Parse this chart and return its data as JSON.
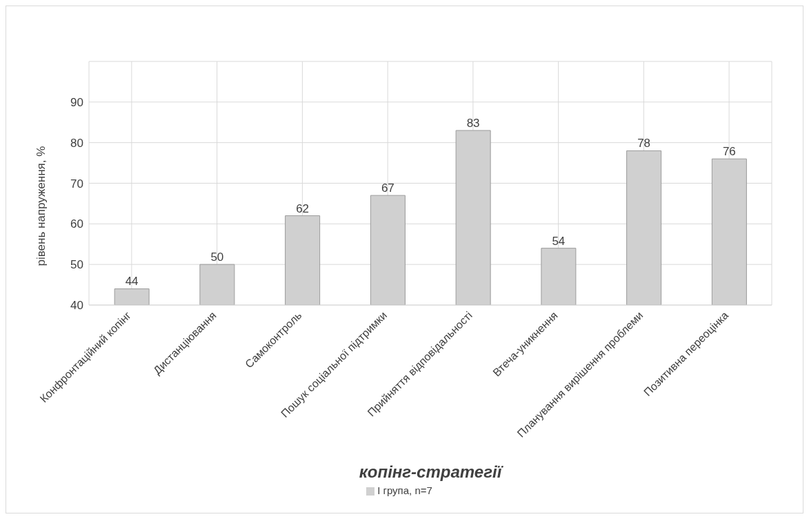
{
  "chart_data": {
    "type": "bar",
    "xlabel": "копінг-стратегії",
    "ylabel": "рівень напруження, %",
    "categories": [
      "Конфронтаційний копінг",
      "Дистанціювання",
      "Самоконтроль",
      "Пошук соціальної підтримки",
      "Прийняття відповідальності",
      "Втеча-уникнення",
      "Планування вирішення проблеми",
      "Позитивна переоцінка"
    ],
    "series": [
      {
        "name": "І група, n=7",
        "color": "#d0d0d0",
        "values": [
          44,
          50,
          62,
          67,
          83,
          54,
          78,
          76
        ]
      }
    ],
    "ylim": [
      40,
      100
    ],
    "yticks": [
      40,
      50,
      60,
      70,
      80,
      90,
      {
        "value": 100,
        "label": null
      }
    ],
    "grid": true,
    "legend": "bottom",
    "data_labels": true
  }
}
